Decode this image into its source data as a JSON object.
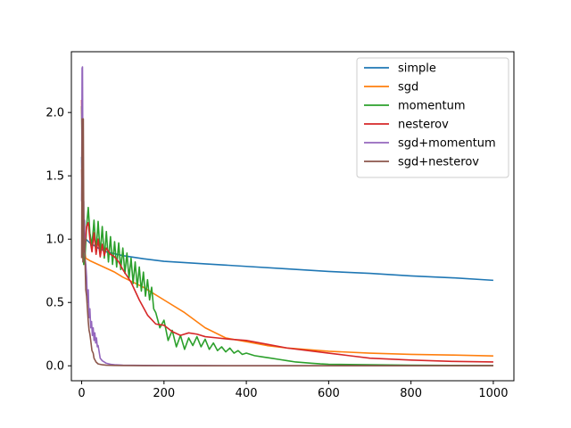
{
  "chart_data": {
    "type": "line",
    "title": "",
    "xlabel": "",
    "ylabel": "",
    "xlim": [
      -25,
      1050
    ],
    "ylim": [
      -0.118,
      2.48
    ],
    "xticks": [
      0,
      200,
      400,
      600,
      800,
      1000
    ],
    "yticks": [
      0.0,
      0.5,
      1.0,
      1.5,
      2.0
    ],
    "xtick_labels": [
      "0",
      "200",
      "400",
      "600",
      "800",
      "1000"
    ],
    "ytick_labels": [
      "0.0",
      "0.5",
      "1.0",
      "1.5",
      "2.0"
    ],
    "grid": false,
    "legend_position": "top-right",
    "series": [
      {
        "name": "simple",
        "color": "#1f77b4",
        "x": [
          0,
          2,
          5,
          10,
          20,
          40,
          60,
          80,
          100,
          150,
          200,
          300,
          400,
          500,
          600,
          700,
          800,
          900,
          1000
        ],
        "y": [
          1.65,
          1.2,
          1.05,
          1.0,
          0.97,
          0.93,
          0.9,
          0.885,
          0.87,
          0.845,
          0.825,
          0.805,
          0.785,
          0.765,
          0.745,
          0.73,
          0.71,
          0.695,
          0.675
        ]
      },
      {
        "name": "sgd",
        "color": "#ff7f0e",
        "x": [
          0,
          2,
          5,
          10,
          20,
          40,
          60,
          80,
          100,
          150,
          200,
          250,
          300,
          350,
          400,
          450,
          500,
          600,
          700,
          800,
          900,
          1000
        ],
        "y": [
          1.55,
          1.2,
          0.95,
          0.85,
          0.83,
          0.8,
          0.77,
          0.74,
          0.7,
          0.62,
          0.52,
          0.42,
          0.3,
          0.22,
          0.19,
          0.16,
          0.14,
          0.115,
          0.1,
          0.09,
          0.085,
          0.078
        ]
      },
      {
        "name": "momentum",
        "color": "#2ca02c",
        "x": [
          0,
          2,
          5,
          8,
          12,
          16,
          20,
          25,
          30,
          35,
          40,
          45,
          50,
          55,
          60,
          65,
          70,
          75,
          80,
          85,
          90,
          95,
          100,
          105,
          110,
          115,
          120,
          125,
          130,
          135,
          140,
          145,
          150,
          155,
          160,
          165,
          170,
          175,
          180,
          190,
          200,
          210,
          220,
          230,
          240,
          250,
          260,
          270,
          280,
          290,
          300,
          310,
          320,
          330,
          340,
          350,
          360,
          370,
          380,
          390,
          400,
          420,
          440,
          460,
          480,
          500,
          520,
          540,
          560,
          580,
          600,
          650,
          700,
          800,
          900,
          1000
        ],
        "y": [
          2.05,
          1.2,
          0.8,
          0.85,
          1.1,
          1.25,
          1.05,
          0.95,
          1.15,
          0.9,
          1.14,
          0.88,
          1.1,
          0.85,
          1.06,
          0.82,
          1.02,
          0.8,
          0.98,
          0.78,
          0.97,
          0.76,
          0.93,
          0.73,
          0.89,
          0.69,
          0.85,
          0.65,
          0.82,
          0.62,
          0.78,
          0.59,
          0.74,
          0.55,
          0.68,
          0.52,
          0.62,
          0.45,
          0.42,
          0.3,
          0.36,
          0.2,
          0.28,
          0.15,
          0.24,
          0.13,
          0.22,
          0.16,
          0.23,
          0.15,
          0.21,
          0.13,
          0.18,
          0.12,
          0.15,
          0.11,
          0.14,
          0.1,
          0.12,
          0.09,
          0.1,
          0.08,
          0.07,
          0.06,
          0.05,
          0.04,
          0.03,
          0.025,
          0.02,
          0.015,
          0.012,
          0.01,
          0.008,
          0.005,
          0.003,
          0.002
        ]
      },
      {
        "name": "nesterov",
        "color": "#d62728",
        "x": [
          0,
          2,
          5,
          8,
          12,
          16,
          20,
          25,
          30,
          35,
          40,
          45,
          50,
          55,
          60,
          70,
          80,
          90,
          100,
          120,
          140,
          160,
          180,
          200,
          220,
          240,
          260,
          280,
          300,
          330,
          360,
          400,
          450,
          500,
          550,
          600,
          650,
          700,
          800,
          900,
          1000
        ],
        "y": [
          2.1,
          1.3,
          0.9,
          0.95,
          1.1,
          1.13,
          1.0,
          0.9,
          1.05,
          0.88,
          1.0,
          0.86,
          0.96,
          0.87,
          0.93,
          0.88,
          0.86,
          0.82,
          0.76,
          0.66,
          0.52,
          0.4,
          0.33,
          0.32,
          0.27,
          0.24,
          0.26,
          0.25,
          0.23,
          0.22,
          0.21,
          0.2,
          0.17,
          0.14,
          0.12,
          0.1,
          0.08,
          0.06,
          0.045,
          0.035,
          0.03
        ]
      },
      {
        "name": "sgd+momentum",
        "color": "#9467bd",
        "x": [
          0,
          1,
          2,
          3,
          4,
          5,
          6,
          7,
          8,
          10,
          12,
          14,
          16,
          18,
          20,
          22,
          24,
          26,
          28,
          30,
          32,
          34,
          36,
          38,
          40,
          45,
          50,
          60,
          70,
          80,
          100,
          150,
          200,
          300,
          500,
          700,
          1000
        ],
        "y": [
          1.3,
          2.35,
          2.36,
          1.6,
          1.05,
          1.3,
          0.9,
          1.15,
          0.85,
          0.8,
          0.7,
          0.5,
          0.6,
          0.38,
          0.45,
          0.3,
          0.35,
          0.24,
          0.3,
          0.2,
          0.26,
          0.18,
          0.22,
          0.15,
          0.16,
          0.06,
          0.04,
          0.02,
          0.012,
          0.008,
          0.005,
          0.003,
          0.002,
          0.001,
          0.0005,
          0.0003,
          0.0002
        ]
      },
      {
        "name": "sgd+nesterov",
        "color": "#8c564b",
        "x": [
          0,
          1,
          2,
          3,
          4,
          5,
          6,
          7,
          8,
          10,
          12,
          14,
          16,
          18,
          20,
          22,
          25,
          28,
          30,
          35,
          40,
          50,
          60,
          80,
          100,
          150,
          200,
          300,
          500,
          700,
          1000
        ],
        "y": [
          0.85,
          1.95,
          1.5,
          0.82,
          1.95,
          1.2,
          0.9,
          1.0,
          0.85,
          0.6,
          0.55,
          0.45,
          0.35,
          0.28,
          0.25,
          0.2,
          0.12,
          0.1,
          0.06,
          0.03,
          0.015,
          0.008,
          0.005,
          0.003,
          0.002,
          0.001,
          0.0008,
          0.0005,
          0.0003,
          0.0002,
          0.0001
        ]
      }
    ]
  }
}
